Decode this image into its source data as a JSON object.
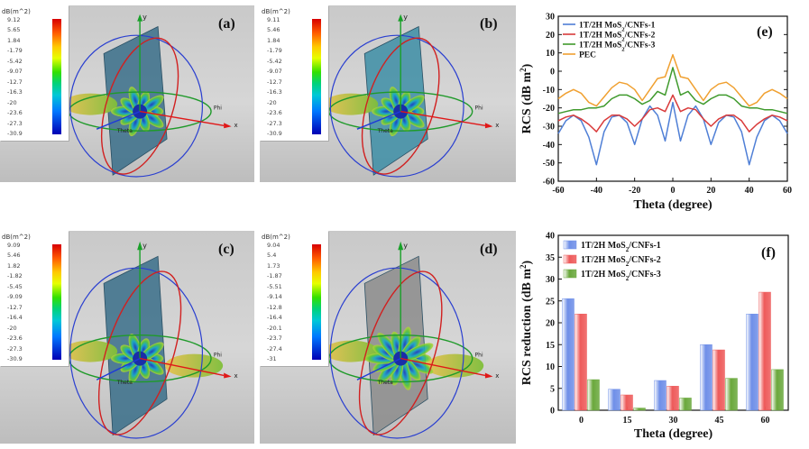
{
  "panels": [
    {
      "label": "(a)",
      "cbar_title": "dB(m^2)",
      "ticks": [
        "9.12",
        "5.65",
        "1.84",
        "-1.79",
        "-5.42",
        "-9.07",
        "-12.7",
        "-16.3",
        "-20",
        "-23.6",
        "-27.3",
        "-30.9"
      ],
      "axes": {
        "x": "x",
        "y": "y",
        "phi": "Phi",
        "theta": "Theta"
      }
    },
    {
      "label": "(b)",
      "cbar_title": "dB(m^2)",
      "ticks": [
        "9.11",
        "5.46",
        "1.84",
        "-1.79",
        "-5.42",
        "-9.07",
        "-12.7",
        "-16.3",
        "-20",
        "-23.6",
        "-27.3",
        "-30.9"
      ],
      "axes": {
        "x": "x",
        "y": "y",
        "phi": "Phi",
        "theta": "Theta"
      }
    },
    {
      "label": "(c)",
      "cbar_title": "dB(m^2)",
      "ticks": [
        "9.09",
        "5.46",
        "1.82",
        "-1.82",
        "-5.45",
        "-9.09",
        "-12.7",
        "-16.4",
        "-20",
        "-23.6",
        "-27.3",
        "-30.9"
      ],
      "axes": {
        "x": "x",
        "y": "y",
        "phi": "Phi",
        "theta": "Theta"
      }
    },
    {
      "label": "(d)",
      "cbar_title": "dB(m^2)",
      "ticks": [
        "9.04",
        "5.4",
        "1.73",
        "-1.87",
        "-5.51",
        "-9.14",
        "-12.8",
        "-16.4",
        "-20.1",
        "-23.7",
        "-27.4",
        "-31"
      ],
      "axes": {
        "x": "x",
        "y": "y",
        "phi": "Phi",
        "theta": "Theta"
      }
    }
  ],
  "chart_data": [
    {
      "label": "(e)",
      "type": "line",
      "xlabel": "Theta (degree)",
      "ylabel_main": "RCS (dB m",
      "ylabel_sup": "2",
      "ylabel_end": ")",
      "xlim": [
        -60,
        60
      ],
      "ylim": [
        -60,
        30
      ],
      "xticks": [
        -60,
        -40,
        -20,
        0,
        20,
        40,
        60
      ],
      "yticks": [
        -60,
        -50,
        -40,
        -30,
        -20,
        -10,
        0,
        10,
        20,
        30
      ],
      "legend_position": "top-left",
      "legend": [
        {
          "pre": "1T/2H MoS",
          "sub": "2",
          "post": "/CNFs-1"
        },
        {
          "pre": "1T/2H MoS",
          "sub": "2",
          "post": "/CNFs-2"
        },
        {
          "pre": "1T/2H MoS",
          "sub": "2",
          "post": "/CNFs-3"
        },
        {
          "pre": "PEC",
          "sub": "",
          "post": ""
        }
      ],
      "colors": [
        "#4f7fd6",
        "#d93a3a",
        "#3f9a2c",
        "#f0a030"
      ],
      "series": [
        {
          "x": [
            -60,
            -56,
            -52,
            -48,
            -44,
            -40,
            -36,
            -32,
            -28,
            -24,
            -20,
            -16,
            -12,
            -8,
            -4,
            0,
            4,
            8,
            12,
            16,
            20,
            24,
            28,
            32,
            36,
            40,
            44,
            48,
            52,
            56,
            60
          ],
          "y": [
            -34,
            -27,
            -24,
            -27,
            -36,
            -51,
            -33,
            -25,
            -24,
            -28,
            -40,
            -26,
            -19,
            -24,
            -38,
            -17,
            -38,
            -24,
            -19,
            -26,
            -40,
            -28,
            -24,
            -25,
            -33,
            -51,
            -36,
            -27,
            -24,
            -27,
            -34
          ]
        },
        {
          "x": [
            -60,
            -56,
            -52,
            -48,
            -44,
            -40,
            -36,
            -32,
            -28,
            -24,
            -20,
            -16,
            -12,
            -8,
            -4,
            0,
            4,
            8,
            12,
            16,
            20,
            24,
            28,
            32,
            36,
            40,
            44,
            48,
            52,
            56,
            60
          ],
          "y": [
            -27,
            -25,
            -24,
            -26,
            -29,
            -33,
            -27,
            -24,
            -24,
            -26,
            -30,
            -26,
            -21,
            -20,
            -22,
            -13,
            -22,
            -20,
            -21,
            -26,
            -30,
            -26,
            -24,
            -24,
            -27,
            -33,
            -29,
            -26,
            -24,
            -25,
            -27
          ]
        },
        {
          "x": [
            -60,
            -56,
            -52,
            -48,
            -44,
            -40,
            -36,
            -32,
            -28,
            -24,
            -20,
            -16,
            -12,
            -8,
            -4,
            0,
            4,
            8,
            12,
            16,
            20,
            24,
            28,
            32,
            36,
            40,
            44,
            48,
            52,
            56,
            60
          ],
          "y": [
            -23,
            -22,
            -21,
            -21,
            -20,
            -20,
            -19,
            -15,
            -13,
            -13,
            -15,
            -18,
            -16,
            -11,
            -13,
            2,
            -13,
            -11,
            -16,
            -18,
            -15,
            -13,
            -13,
            -15,
            -19,
            -20,
            -20,
            -21,
            -21,
            -22,
            -23
          ]
        },
        {
          "x": [
            -60,
            -56,
            -52,
            -48,
            -44,
            -40,
            -36,
            -32,
            -28,
            -24,
            -20,
            -16,
            -12,
            -8,
            -4,
            0,
            4,
            8,
            12,
            16,
            20,
            24,
            28,
            32,
            36,
            40,
            44,
            48,
            52,
            56,
            60
          ],
          "y": [
            -15,
            -12,
            -10,
            -12,
            -17,
            -19,
            -14,
            -9,
            -6,
            -7,
            -10,
            -16,
            -10,
            -4,
            -3,
            9,
            -3,
            -4,
            -10,
            -16,
            -10,
            -7,
            -6,
            -9,
            -14,
            -19,
            -17,
            -12,
            -10,
            -12,
            -15
          ]
        }
      ]
    },
    {
      "label": "(f)",
      "type": "bar",
      "xlabel": "Theta (degree)",
      "ylabel": "RCS reduction (dB m",
      "ylabel_sup": "2",
      "ylabel_end": ")",
      "categories": [
        "0",
        "15",
        "30",
        "45",
        "60"
      ],
      "ylim": [
        0,
        40
      ],
      "yticks": [
        0,
        5,
        10,
        15,
        20,
        25,
        30,
        35,
        40
      ],
      "legend_position": "top-left",
      "legend": [
        {
          "pre": "1T/2H MoS",
          "sub": "2",
          "post": "/CNFs-1"
        },
        {
          "pre": "1T/2H MoS",
          "sub": "2",
          "post": "/CNFs-2"
        },
        {
          "pre": "1T/2H MoS",
          "sub": "2",
          "post": "/CNFs-3"
        }
      ],
      "colors": [
        "#6f8fe8",
        "#ee5a5a",
        "#6aa83c"
      ],
      "series": [
        {
          "values": [
            25.5,
            4.8,
            6.8,
            15,
            22
          ]
        },
        {
          "values": [
            22,
            3.5,
            5.5,
            13.8,
            27
          ]
        },
        {
          "values": [
            7,
            0.5,
            2.8,
            7.3,
            9.3
          ]
        }
      ]
    }
  ]
}
